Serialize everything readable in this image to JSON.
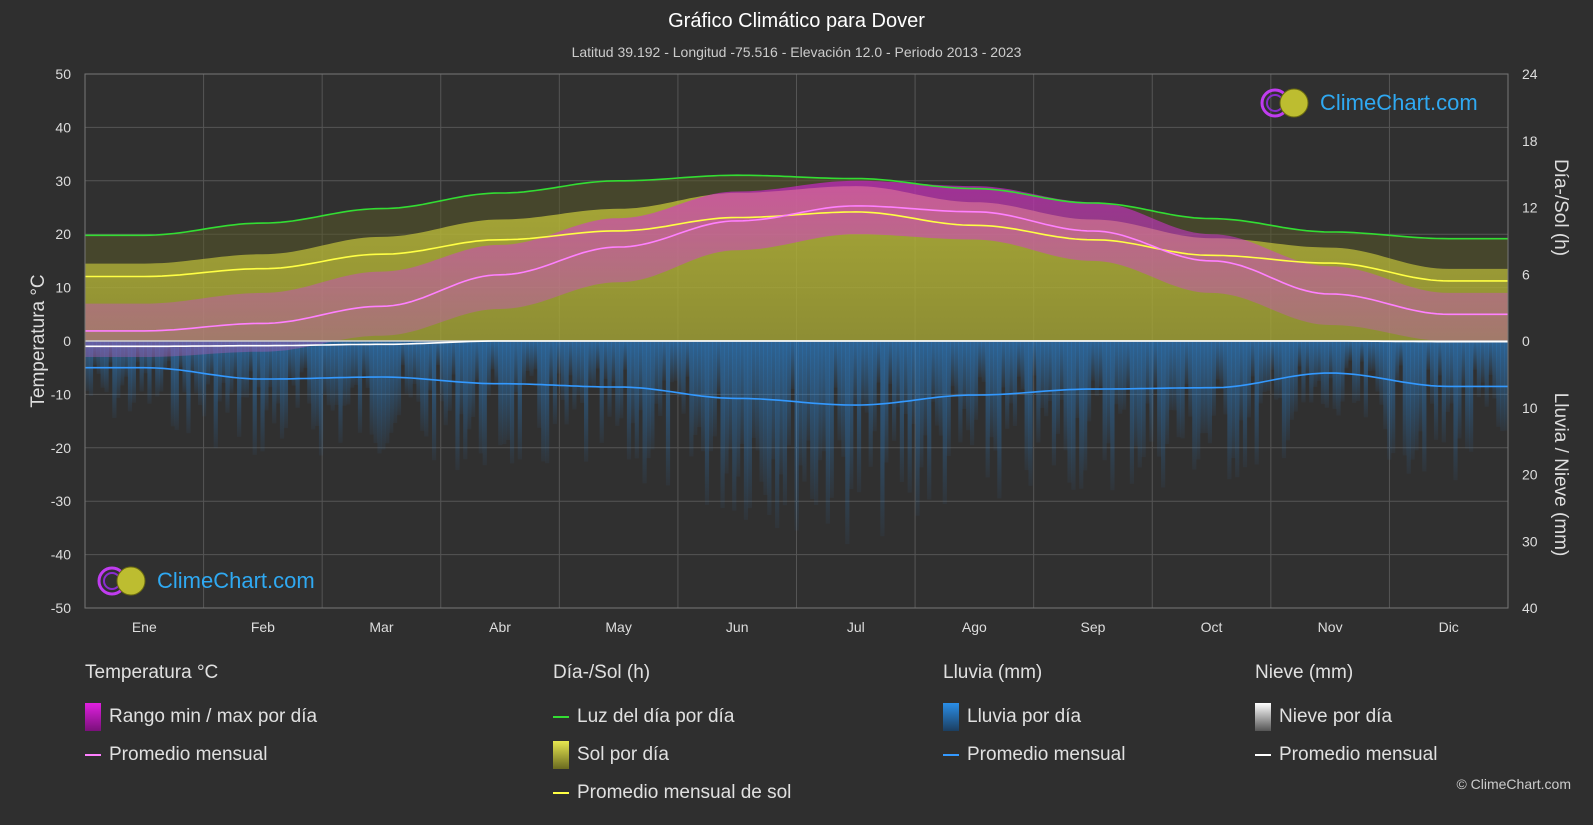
{
  "title": "Gráfico Climático para Dover",
  "subtitle": "Latitud 39.192 - Longitud -75.516 - Elevación 12.0 - Periodo 2013 - 2023",
  "logo_text": "ClimeChart.com",
  "copyright": "© ClimeChart.com",
  "colors": {
    "background": "#2f2f2f",
    "temp_range": "#e020e0",
    "temp_avg": "#ff80ff",
    "daylight": "#33dd33",
    "sun": "#c8c83a",
    "sun_avg": "#ffff44",
    "rain": "#2a8ee8",
    "rain_avg": "#3399ff",
    "snow": "#ffffff",
    "snow_avg": "#ffffff"
  },
  "legend": {
    "temp": {
      "head": "Temperatura °C",
      "range": "Rango min / max por día",
      "avg": "Promedio mensual"
    },
    "sun": {
      "head": "Día-/Sol (h)",
      "daylight": "Luz del día por día",
      "sun_day": "Sol por día",
      "sun_avg": "Promedio mensual de sol"
    },
    "rain": {
      "head": "Lluvia (mm)",
      "rain_day": "Lluvia por día",
      "avg": "Promedio mensual"
    },
    "snow": {
      "head": "Nieve (mm)",
      "snow_day": "Nieve por día",
      "avg": "Promedio mensual"
    }
  },
  "chart_data": {
    "type": "line",
    "x_labels": [
      "Ene",
      "Feb",
      "Mar",
      "Abr",
      "May",
      "Jun",
      "Jul",
      "Ago",
      "Sep",
      "Oct",
      "Nov",
      "Dic"
    ],
    "y_left": {
      "label": "Temperatura °C",
      "range": [
        -50,
        50
      ],
      "ticks": [
        50,
        40,
        30,
        20,
        10,
        0,
        -10,
        -20,
        -30,
        -40,
        -50
      ]
    },
    "y_right_top": {
      "label": "Día-/Sol (h)",
      "range": [
        0,
        24
      ],
      "ticks": [
        24,
        18,
        12,
        6,
        0
      ]
    },
    "y_right_bottom": {
      "label": "Lluvia / Nieve (mm)",
      "range": [
        0,
        40
      ],
      "ticks": [
        0,
        10,
        20,
        30,
        40
      ]
    },
    "series": [
      {
        "name": "Luz del día por día",
        "unit": "h",
        "values": [
          9.5,
          10.6,
          11.9,
          13.3,
          14.4,
          14.9,
          14.6,
          13.7,
          12.4,
          11.0,
          9.8,
          9.2
        ]
      },
      {
        "name": "Promedio mensual de sol",
        "unit": "h",
        "values": [
          5.8,
          6.5,
          7.8,
          9.1,
          9.9,
          11.1,
          11.6,
          10.4,
          9.1,
          7.7,
          7.0,
          5.4
        ]
      },
      {
        "name": "Promedio mensual temperatura",
        "unit": "°C",
        "values": [
          1.9,
          3.3,
          6.5,
          12.4,
          17.6,
          22.5,
          25.3,
          24.2,
          20.6,
          15.0,
          8.8,
          5.0
        ]
      },
      {
        "name": "Promedio mensual lluvia",
        "unit": "mm",
        "values": [
          4.0,
          5.7,
          5.4,
          6.4,
          6.9,
          8.6,
          9.6,
          8.1,
          7.2,
          7.0,
          4.8,
          6.8
        ]
      },
      {
        "name": "Promedio mensual nieve",
        "unit": "mm",
        "values": [
          0.8,
          0.7,
          0.5,
          0.0,
          0.0,
          0.0,
          0.0,
          0.0,
          0.0,
          0.0,
          0.0,
          0.1
        ]
      }
    ],
    "temp_range_monthly": {
      "min": [
        -3,
        -2,
        1,
        6,
        11,
        17,
        20,
        19,
        15,
        9,
        3,
        0
      ],
      "max": [
        7,
        9,
        13,
        18,
        23,
        28,
        30,
        29,
        26,
        20,
        14,
        9
      ]
    },
    "grid": true
  }
}
